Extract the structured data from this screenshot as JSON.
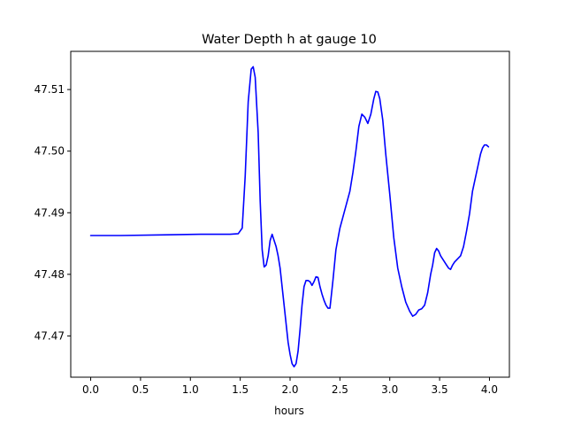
{
  "chart_data": {
    "type": "line",
    "title": "Water Depth h at gauge 10",
    "xlabel": "hours",
    "ylabel": "",
    "xlim": [
      -0.2,
      4.2
    ],
    "ylim": [
      47.4633,
      47.5162
    ],
    "xticks": [
      0.0,
      0.5,
      1.0,
      1.5,
      2.0,
      2.5,
      3.0,
      3.5,
      4.0
    ],
    "xtick_labels": [
      "0.0",
      "0.5",
      "1.0",
      "1.5",
      "2.0",
      "2.5",
      "3.0",
      "3.5",
      "4.0"
    ],
    "yticks": [
      47.47,
      47.48,
      47.49,
      47.5,
      47.51
    ],
    "ytick_labels": [
      "47.47",
      "47.48",
      "47.49",
      "47.50",
      "47.51"
    ],
    "grid": false,
    "series": [
      {
        "color": "#0000ff",
        "x": [
          0.0,
          0.3,
          0.7,
          1.1,
          1.3,
          1.4,
          1.48,
          1.52,
          1.55,
          1.58,
          1.61,
          1.63,
          1.65,
          1.68,
          1.7,
          1.72,
          1.74,
          1.76,
          1.78,
          1.8,
          1.82,
          1.84,
          1.86,
          1.88,
          1.9,
          1.92,
          1.94,
          1.96,
          1.98,
          2.0,
          2.02,
          2.04,
          2.06,
          2.08,
          2.1,
          2.12,
          2.14,
          2.16,
          2.18,
          2.2,
          2.22,
          2.24,
          2.26,
          2.28,
          2.3,
          2.32,
          2.34,
          2.36,
          2.38,
          2.4,
          2.43,
          2.46,
          2.5,
          2.55,
          2.6,
          2.63,
          2.66,
          2.69,
          2.72,
          2.75,
          2.78,
          2.81,
          2.84,
          2.86,
          2.88,
          2.9,
          2.93,
          2.96,
          3.0,
          3.04,
          3.08,
          3.12,
          3.16,
          3.2,
          3.23,
          3.26,
          3.29,
          3.32,
          3.35,
          3.38,
          3.41,
          3.43,
          3.45,
          3.47,
          3.49,
          3.51,
          3.53,
          3.55,
          3.57,
          3.59,
          3.61,
          3.63,
          3.65,
          3.68,
          3.71,
          3.74,
          3.77,
          3.8,
          3.83,
          3.85,
          3.87,
          3.89,
          3.91,
          3.93,
          3.95,
          3.97,
          3.99
        ],
        "y": [
          47.4863,
          47.4863,
          47.4864,
          47.4865,
          47.4865,
          47.4865,
          47.4866,
          47.4875,
          47.496,
          47.508,
          47.5133,
          47.5137,
          47.512,
          47.503,
          47.492,
          47.484,
          47.4812,
          47.4815,
          47.483,
          47.4855,
          47.4865,
          47.4855,
          47.4845,
          47.483,
          47.481,
          47.478,
          47.475,
          47.472,
          47.469,
          47.467,
          47.4655,
          47.465,
          47.4655,
          47.4675,
          47.471,
          47.475,
          47.478,
          47.479,
          47.479,
          47.4788,
          47.4782,
          47.4788,
          47.4796,
          47.4795,
          47.478,
          47.4768,
          47.4758,
          47.475,
          47.4745,
          47.4745,
          47.479,
          47.484,
          47.4875,
          47.4905,
          47.4935,
          47.4965,
          47.5,
          47.504,
          47.506,
          47.5055,
          47.5045,
          47.506,
          47.5085,
          47.5097,
          47.5096,
          47.5085,
          47.505,
          47.4995,
          47.493,
          47.486,
          47.481,
          47.478,
          47.4755,
          47.474,
          47.4732,
          47.4735,
          47.4742,
          47.4744,
          47.475,
          47.477,
          47.48,
          47.4815,
          47.4835,
          47.4842,
          47.4838,
          47.483,
          47.4825,
          47.482,
          47.4815,
          47.481,
          47.4808,
          47.4815,
          47.482,
          47.4825,
          47.483,
          47.4845,
          47.487,
          47.4898,
          47.4935,
          47.495,
          47.4965,
          47.498,
          47.4995,
          47.5005,
          47.501,
          47.501,
          47.5007
        ]
      }
    ]
  }
}
